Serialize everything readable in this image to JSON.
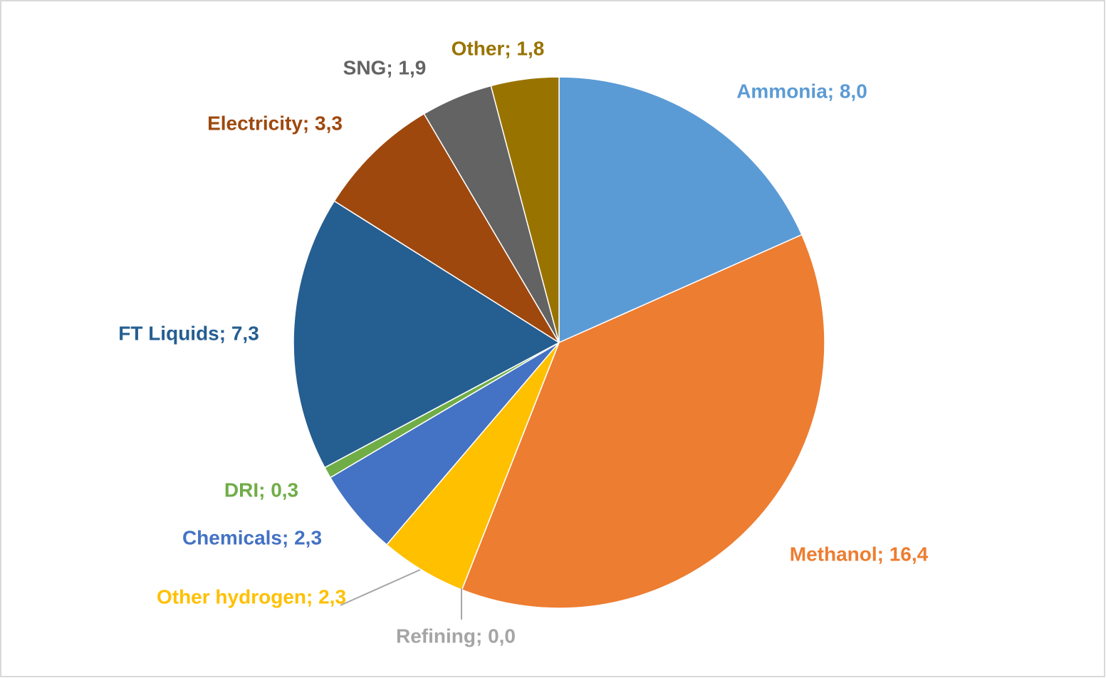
{
  "chart_data": {
    "type": "pie",
    "values": [
      8.0,
      16.4,
      0.0,
      2.3,
      2.3,
      0.3,
      7.3,
      3.3,
      1.9,
      1.8
    ],
    "value_labels": [
      "Ammonia; 8,0",
      "Methanol; 16,4",
      "Refining; 0,0",
      "Other hydrogen; 2,3",
      "Chemicals; 2,3",
      "DRI; 0,3",
      "FT Liquids; 7,3",
      "Electricity; 3,3",
      "SNG; 1,9",
      "Other; 1,8"
    ],
    "colors": [
      "#5b9bd5",
      "#ed7d31",
      "#a5a5a5",
      "#ffc000",
      "#4472c4",
      "#70ad47",
      "#255e91",
      "#9e480e",
      "#636363",
      "#997300"
    ]
  }
}
